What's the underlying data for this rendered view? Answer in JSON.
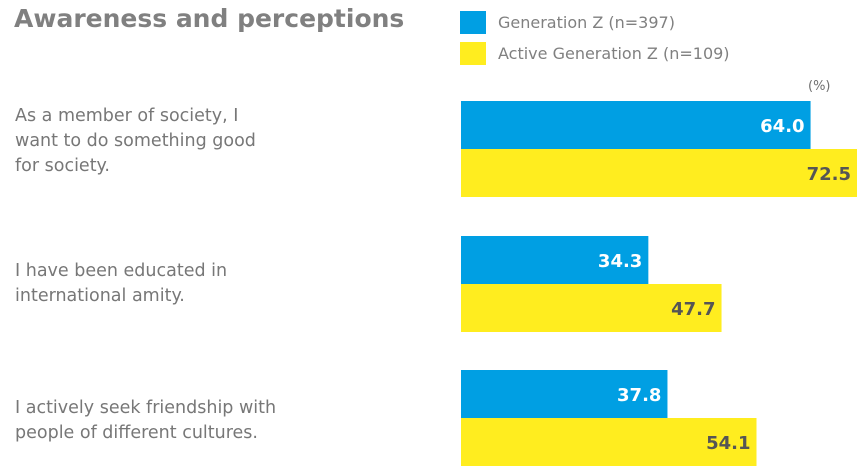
{
  "chart_data": {
    "type": "bar",
    "orientation": "horizontal",
    "title": "Awareness and perceptions",
    "unit": "(%)",
    "categories": [
      [
        "As a member of society, I",
        "want to do something good",
        "for society."
      ],
      [
        "I have been educated in",
        "international amity."
      ],
      [
        "I actively seek friendship with",
        "people of different cultures."
      ]
    ],
    "series": [
      {
        "name": "Generation Z (n=397)",
        "color": "#009fe3",
        "values": [
          64.0,
          34.3,
          37.8
        ],
        "labels": [
          "64.0",
          "34.3",
          "37.8"
        ]
      },
      {
        "name": "Active Generation Z (n=109)",
        "color": "#ffed1f",
        "values": [
          72.5,
          47.7,
          54.1
        ],
        "labels": [
          "72.5",
          "47.7",
          "54.1"
        ]
      }
    ],
    "xlim": [
      0,
      72.5
    ],
    "legend": "top",
    "grid": false
  }
}
